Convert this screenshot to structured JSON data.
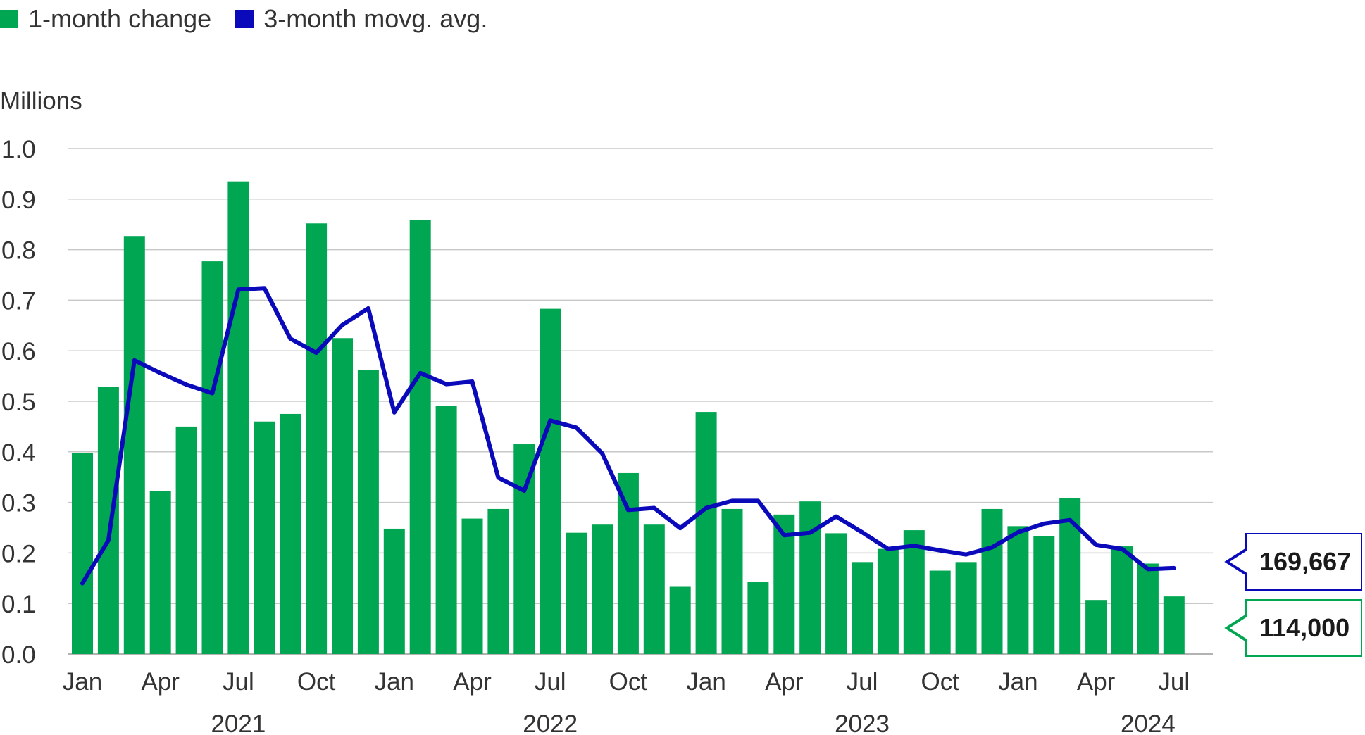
{
  "legend": {
    "bar_label": "1-month change",
    "line_label": "3-month movg. avg."
  },
  "colors": {
    "bar": "#00a651",
    "line": "#0a0aba",
    "grid": "#c8c8c8",
    "text": "#333333"
  },
  "callouts": {
    "line_value": "169,667",
    "bar_value": "114,000"
  },
  "chart_data": {
    "type": "bar",
    "unit_label": "Millions",
    "ylim": [
      0,
      1.0
    ],
    "y_ticks": [
      "0.0",
      "0.1",
      "0.2",
      "0.3",
      "0.4",
      "0.5",
      "0.6",
      "0.7",
      "0.8",
      "0.9",
      "1.0"
    ],
    "x_tick_labels": [
      "Jan",
      "Apr",
      "Jul",
      "Oct",
      "Jan",
      "Apr",
      "Jul",
      "Oct",
      "Jan",
      "Apr",
      "Jul",
      "Oct",
      "Jan",
      "Apr",
      "Jul"
    ],
    "x_tick_months": [
      0,
      3,
      6,
      9,
      12,
      15,
      18,
      21,
      24,
      27,
      30,
      33,
      36,
      39,
      42
    ],
    "year_labels": [
      "2021",
      "2022",
      "2023",
      "2024"
    ],
    "year_centers": [
      6,
      18,
      30,
      41
    ],
    "categories": [
      "Jan 2021",
      "Feb 2021",
      "Mar 2021",
      "Apr 2021",
      "May 2021",
      "Jun 2021",
      "Jul 2021",
      "Aug 2021",
      "Sep 2021",
      "Oct 2021",
      "Nov 2021",
      "Dec 2021",
      "Jan 2022",
      "Feb 2022",
      "Mar 2022",
      "Apr 2022",
      "May 2022",
      "Jun 2022",
      "Jul 2022",
      "Aug 2022",
      "Sep 2022",
      "Oct 2022",
      "Nov 2022",
      "Dec 2022",
      "Jan 2023",
      "Feb 2023",
      "Mar 2023",
      "Apr 2023",
      "May 2023",
      "Jun 2023",
      "Jul 2023",
      "Aug 2023",
      "Sep 2023",
      "Oct 2023",
      "Nov 2023",
      "Dec 2023",
      "Jan 2024",
      "Feb 2024",
      "Mar 2024",
      "Apr 2024",
      "May 2024",
      "Jun 2024",
      "Jul 2024"
    ],
    "series": [
      {
        "name": "1-month change",
        "type": "bar",
        "values": [
          0.398,
          0.528,
          0.827,
          0.322,
          0.45,
          0.777,
          0.935,
          0.46,
          0.475,
          0.852,
          0.625,
          0.562,
          0.248,
          0.858,
          0.491,
          0.268,
          0.287,
          0.415,
          0.683,
          0.24,
          0.256,
          0.358,
          0.256,
          0.133,
          0.479,
          0.287,
          0.143,
          0.276,
          0.302,
          0.239,
          0.182,
          0.208,
          0.245,
          0.165,
          0.182,
          0.287,
          0.253,
          0.233,
          0.308,
          0.107,
          0.213,
          0.179,
          0.114
        ]
      },
      {
        "name": "3-month movg. avg.",
        "type": "line",
        "values": [
          0.14,
          0.225,
          0.581,
          0.556,
          0.533,
          0.516,
          0.721,
          0.724,
          0.624,
          0.596,
          0.651,
          0.684,
          0.478,
          0.556,
          0.534,
          0.539,
          0.349,
          0.323,
          0.462,
          0.448,
          0.397,
          0.285,
          0.289,
          0.249,
          0.289,
          0.303,
          0.303,
          0.235,
          0.24,
          0.272,
          0.241,
          0.208,
          0.214,
          0.205,
          0.197,
          0.211,
          0.241,
          0.258,
          0.265,
          0.216,
          0.208,
          0.168,
          0.17
        ]
      }
    ]
  }
}
